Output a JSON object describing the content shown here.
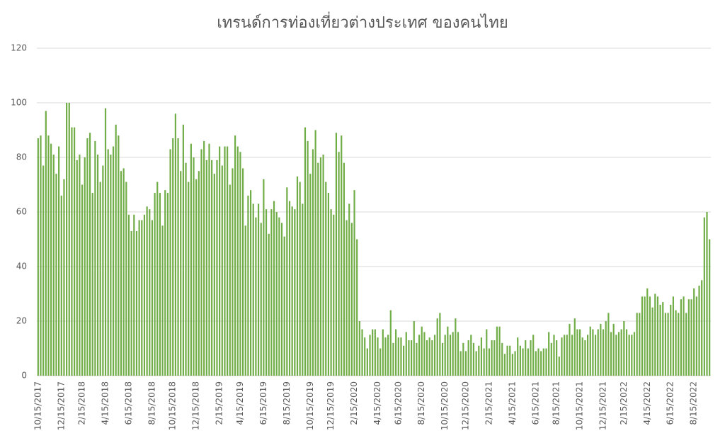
{
  "chart_data": {
    "type": "bar",
    "title": "เทรนด์การท่องเที่ยวต่างประเทศ ของคนไทย",
    "color": "#70ad47",
    "grid": true,
    "ylim": [
      0,
      120
    ],
    "yticks": [
      0,
      20,
      40,
      60,
      80,
      100,
      120
    ],
    "categories": [
      "10/15/2017",
      null,
      null,
      null,
      null,
      null,
      null,
      null,
      null,
      "12/15/2017",
      null,
      null,
      null,
      null,
      null,
      null,
      null,
      "2/15/2018",
      null,
      null,
      null,
      null,
      null,
      null,
      null,
      null,
      "4/15/2018",
      null,
      null,
      null,
      null,
      null,
      null,
      null,
      null,
      "6/15/2018",
      null,
      null,
      null,
      null,
      null,
      null,
      null,
      null,
      "8/15/2018",
      null,
      null,
      null,
      null,
      null,
      null,
      null,
      "10/15/2018",
      null,
      null,
      null,
      null,
      null,
      null,
      null,
      null,
      "12/15/2018",
      null,
      null,
      null,
      null,
      null,
      null,
      null,
      null,
      "2/15/2019",
      null,
      null,
      null,
      null,
      null,
      null,
      null,
      "4/15/2019",
      null,
      null,
      null,
      null,
      null,
      null,
      null,
      null,
      "6/15/2019",
      null,
      null,
      null,
      null,
      null,
      null,
      null,
      null,
      "8/15/2019",
      null,
      null,
      null,
      null,
      null,
      null,
      null,
      null,
      "10/15/2019",
      null,
      null,
      null,
      null,
      null,
      null,
      null,
      "12/15/2019",
      null,
      null,
      null,
      null,
      null,
      null,
      null,
      null,
      "2/15/2020",
      null,
      null,
      null,
      null,
      null,
      null,
      null,
      null,
      "4/15/2020",
      null,
      null,
      null,
      null,
      null,
      null,
      null,
      "6/15/2020",
      null,
      null,
      null,
      null,
      null,
      null,
      null,
      null,
      "8/15/2020",
      null,
      null,
      null,
      null,
      null,
      null,
      null,
      null,
      "10/15/2020",
      null,
      null,
      null,
      null,
      null,
      null,
      null,
      "12/15/2020",
      null,
      null,
      null,
      null,
      null,
      null,
      null,
      null,
      "2/15/2021",
      null,
      null,
      null,
      null,
      null,
      null,
      null,
      null,
      "4/15/2021",
      null,
      null,
      null,
      null,
      null,
      null,
      null,
      null,
      "6/15/2021",
      null,
      null,
      null,
      null,
      null,
      null,
      null,
      "8/15/2021",
      null,
      null,
      null,
      null,
      null,
      null,
      null,
      null,
      "10/15/2021",
      null,
      null,
      null,
      null,
      null,
      null,
      null,
      null,
      "12/15/2021",
      null,
      null,
      null,
      null,
      null,
      null,
      null,
      "2/15/2022",
      null,
      null,
      null,
      null,
      null,
      null,
      null,
      null,
      "4/15/2022",
      null,
      null,
      null,
      null,
      null,
      null,
      null,
      null,
      "6/15/2022",
      null,
      null,
      null,
      null,
      null,
      null,
      null,
      null,
      "8/15/2022",
      null,
      null,
      null,
      null,
      null,
      null
    ],
    "values": [
      87,
      88,
      77,
      97,
      88,
      85,
      81,
      74,
      84,
      66,
      72,
      100,
      100,
      91,
      91,
      79,
      81,
      70,
      80,
      87,
      89,
      67,
      86,
      81,
      71,
      77,
      98,
      83,
      81,
      84,
      92,
      88,
      75,
      76,
      71,
      59,
      53,
      59,
      53,
      57,
      57,
      59,
      62,
      61,
      57,
      67,
      71,
      67,
      55,
      68,
      67,
      83,
      87,
      96,
      87,
      75,
      92,
      78,
      71,
      85,
      80,
      72,
      75,
      83,
      86,
      79,
      85,
      79,
      74,
      79,
      84,
      77,
      84,
      84,
      70,
      76,
      88,
      84,
      82,
      76,
      55,
      66,
      68,
      63,
      58,
      63,
      56,
      72,
      61,
      52,
      61,
      64,
      60,
      58,
      56,
      51,
      69,
      64,
      62,
      61,
      73,
      71,
      63,
      91,
      86,
      74,
      83,
      90,
      78,
      80,
      81,
      71,
      67,
      61,
      59,
      89,
      82,
      88,
      78,
      57,
      63,
      56,
      68,
      50,
      20,
      17,
      14,
      10,
      15,
      17,
      17,
      14,
      10,
      17,
      14,
      15,
      24,
      12,
      17,
      14,
      14,
      11,
      16,
      13,
      13,
      20,
      12,
      15,
      18,
      16,
      13,
      14,
      13,
      15,
      21,
      23,
      12,
      15,
      18,
      15,
      16,
      21,
      16,
      9,
      12,
      9,
      13,
      15,
      12,
      9,
      11,
      14,
      10,
      17,
      10,
      13,
      13,
      18,
      18,
      12,
      8,
      11,
      11,
      8,
      9,
      14,
      11,
      10,
      13,
      10,
      13,
      15,
      9,
      10,
      9,
      10,
      10,
      16,
      12,
      15,
      13,
      7,
      14,
      15,
      15,
      19,
      15,
      21,
      17,
      17,
      14,
      13,
      15,
      18,
      17,
      15,
      17,
      19,
      17,
      20,
      23,
      16,
      19,
      15,
      16,
      17,
      20,
      17,
      15,
      15,
      16,
      23,
      23,
      29,
      29,
      32,
      29,
      25,
      30,
      29,
      26,
      27,
      23,
      23,
      26,
      29,
      24,
      23,
      28,
      29,
      23,
      28,
      28,
      32,
      29,
      33,
      35,
      58,
      60,
      50
    ]
  }
}
